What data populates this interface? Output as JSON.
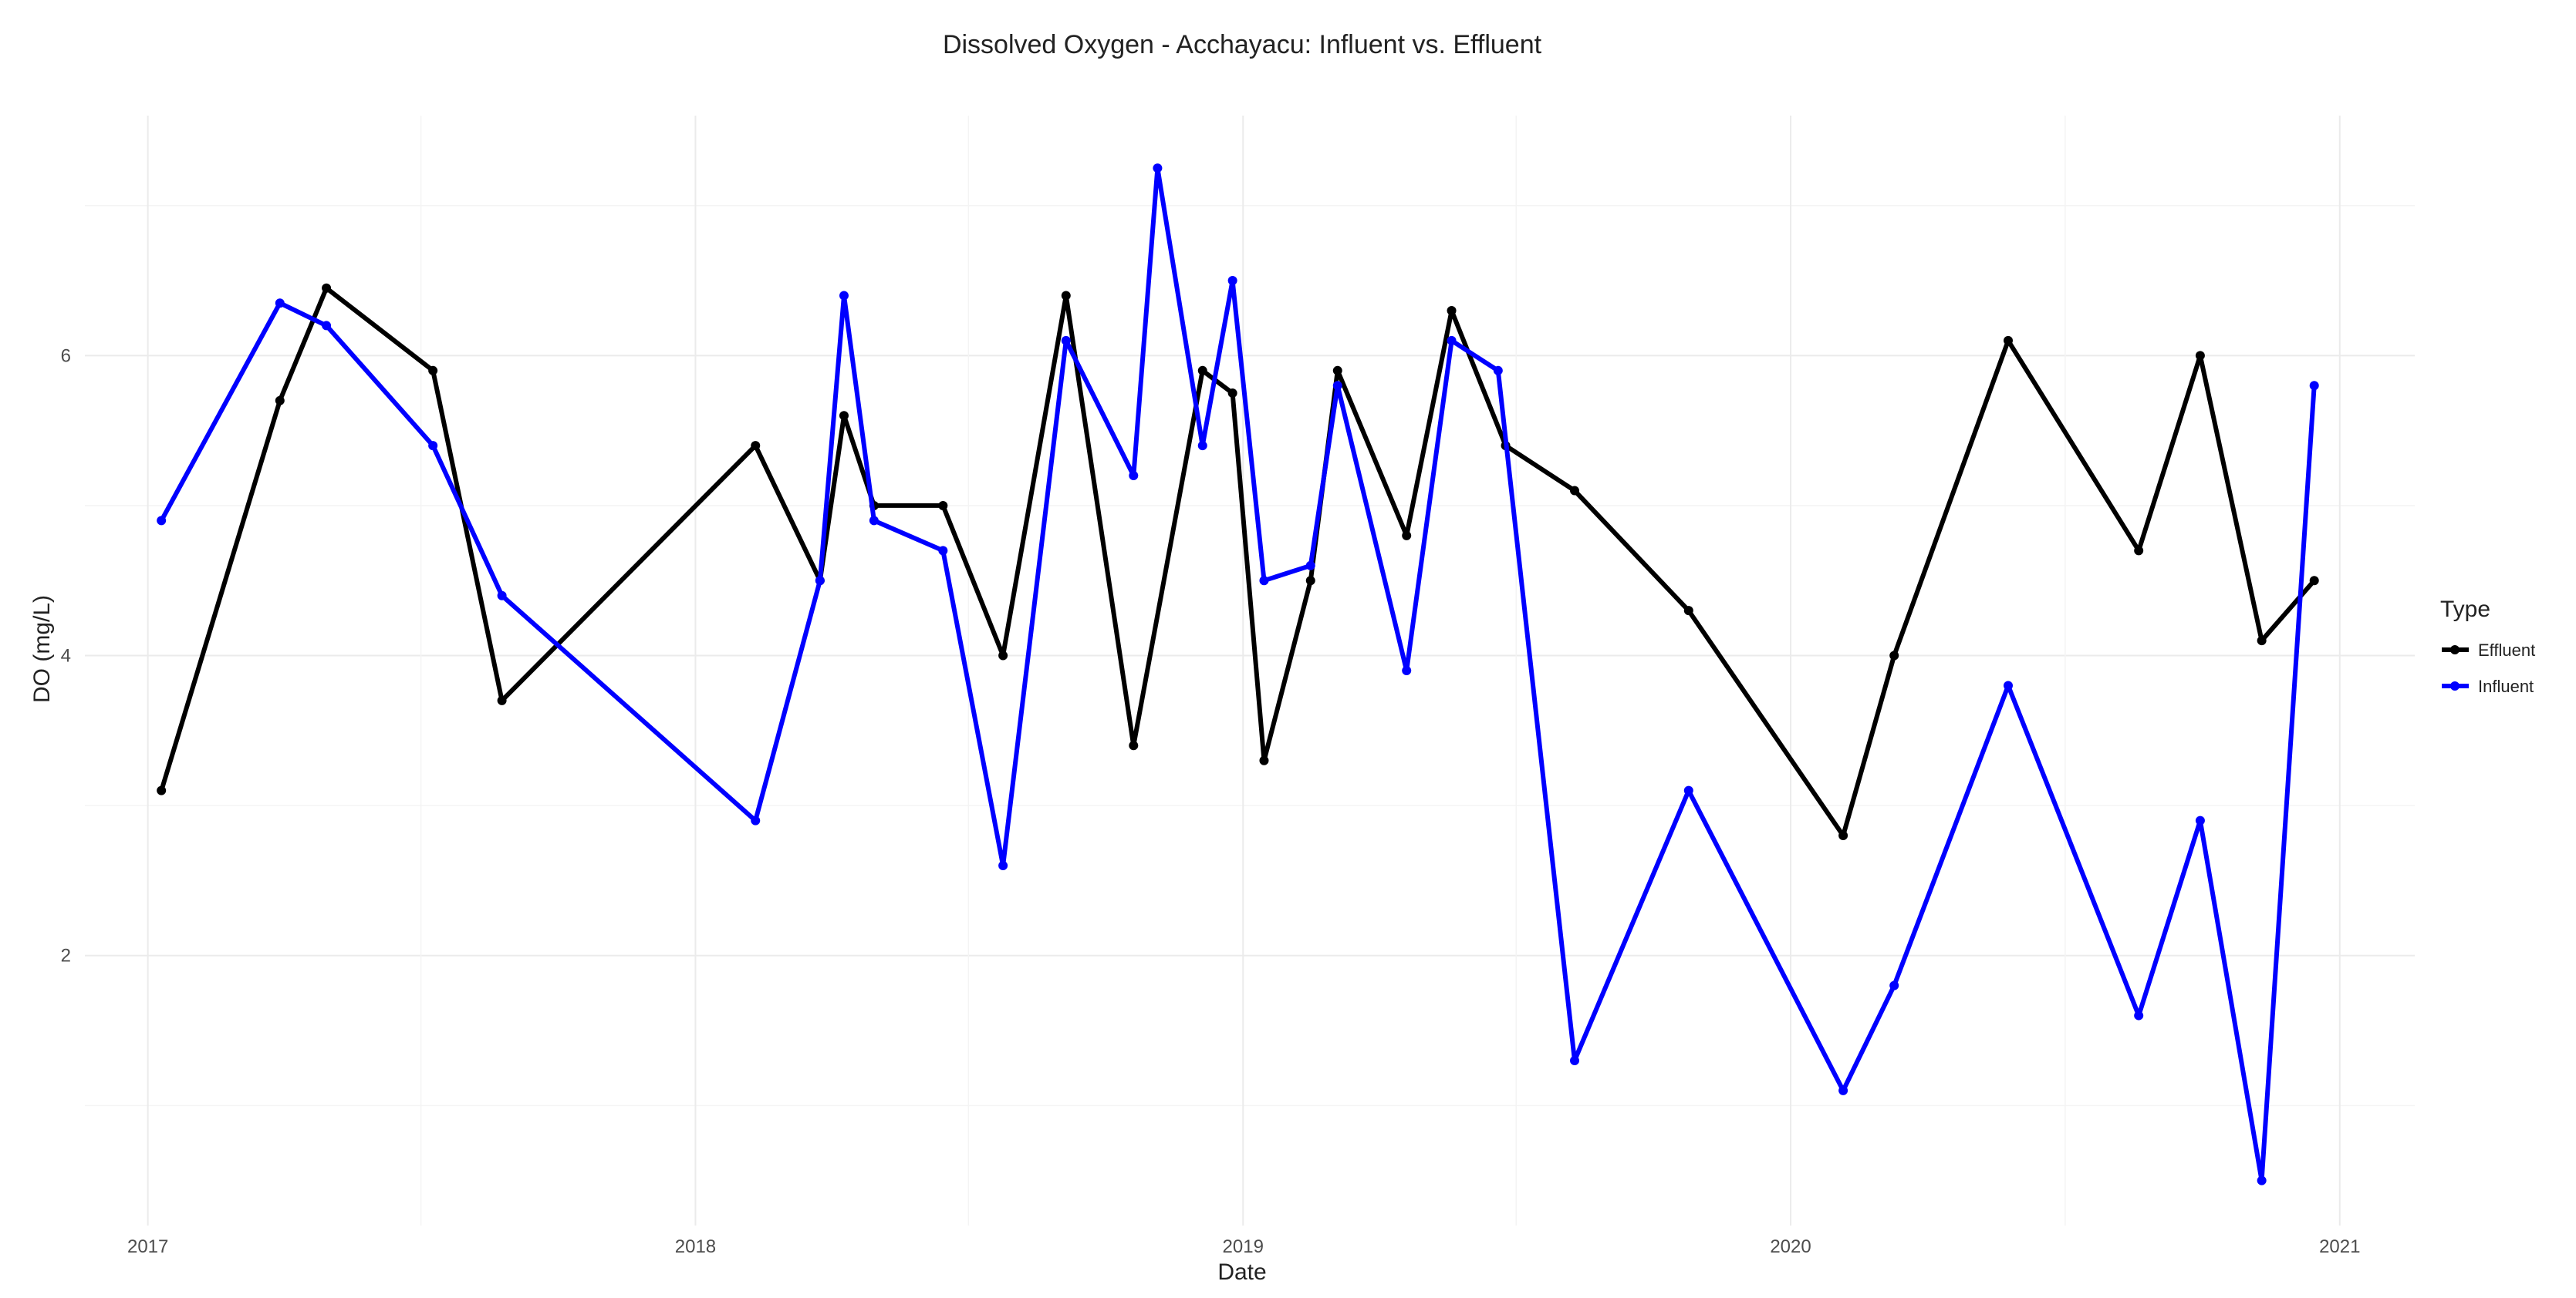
{
  "chart_data": {
    "type": "line",
    "title": "Dissolved Oxygen - Acchayacu: Influent vs. Effluent",
    "xlabel": "Date",
    "ylabel": "DO (mg/L)",
    "x_ticks": [
      "2017",
      "2018",
      "2019",
      "2020",
      "2021"
    ],
    "y_ticks": [
      2,
      4,
      6
    ],
    "xlim": [
      "2016-11-20",
      "2021-02-20"
    ],
    "ylim": [
      0.2,
      7.6
    ],
    "grid": true,
    "legend": {
      "title": "Type",
      "position": "right"
    },
    "series": [
      {
        "name": "Effluent",
        "color": "#000000",
        "points": [
          [
            "2017-01-10",
            3.1
          ],
          [
            "2017-03-30",
            5.7
          ],
          [
            "2017-04-30",
            6.45
          ],
          [
            "2017-07-10",
            5.9
          ],
          [
            "2017-08-25",
            3.7
          ],
          [
            "2018-02-10",
            5.4
          ],
          [
            "2018-03-25",
            4.5
          ],
          [
            "2018-04-10",
            5.6
          ],
          [
            "2018-04-30",
            5.0
          ],
          [
            "2018-06-15",
            5.0
          ],
          [
            "2018-07-25",
            4.0
          ],
          [
            "2018-09-05",
            6.4
          ],
          [
            "2018-10-20",
            3.4
          ],
          [
            "2018-12-05",
            5.9
          ],
          [
            "2018-12-25",
            5.75
          ],
          [
            "2019-01-15",
            3.3
          ],
          [
            "2019-02-15",
            4.5
          ],
          [
            "2019-03-05",
            5.9
          ],
          [
            "2019-04-20",
            4.8
          ],
          [
            "2019-05-20",
            6.3
          ],
          [
            "2019-06-25",
            5.4
          ],
          [
            "2019-08-10",
            5.1
          ],
          [
            "2019-10-25",
            4.3
          ],
          [
            "2020-02-05",
            2.8
          ],
          [
            "2020-03-10",
            4.0
          ],
          [
            "2020-05-25",
            6.1
          ],
          [
            "2020-08-20",
            4.7
          ],
          [
            "2020-09-30",
            6.0
          ],
          [
            "2020-11-10",
            4.1
          ],
          [
            "2020-12-15",
            4.5
          ]
        ]
      },
      {
        "name": "Influent",
        "color": "#0000ff",
        "points": [
          [
            "2017-01-10",
            4.9
          ],
          [
            "2017-03-30",
            6.35
          ],
          [
            "2017-04-30",
            6.2
          ],
          [
            "2017-07-10",
            5.4
          ],
          [
            "2017-08-25",
            4.4
          ],
          [
            "2018-02-10",
            2.9
          ],
          [
            "2018-03-25",
            4.5
          ],
          [
            "2018-04-10",
            6.4
          ],
          [
            "2018-04-30",
            4.9
          ],
          [
            "2018-06-15",
            4.7
          ],
          [
            "2018-07-25",
            2.6
          ],
          [
            "2018-09-05",
            6.1
          ],
          [
            "2018-10-20",
            5.2
          ],
          [
            "2018-11-05",
            7.25
          ],
          [
            "2018-12-05",
            5.4
          ],
          [
            "2018-12-25",
            6.5
          ],
          [
            "2019-01-15",
            4.5
          ],
          [
            "2019-02-15",
            4.6
          ],
          [
            "2019-03-05",
            5.8
          ],
          [
            "2019-04-20",
            3.9
          ],
          [
            "2019-05-20",
            6.1
          ],
          [
            "2019-06-20",
            5.9
          ],
          [
            "2019-08-10",
            1.3
          ],
          [
            "2019-10-25",
            3.1
          ],
          [
            "2020-02-05",
            1.1
          ],
          [
            "2020-03-10",
            1.8
          ],
          [
            "2020-05-25",
            3.8
          ],
          [
            "2020-08-20",
            1.6
          ],
          [
            "2020-09-30",
            2.9
          ],
          [
            "2020-11-10",
            0.5
          ],
          [
            "2020-12-15",
            5.8
          ]
        ]
      }
    ]
  }
}
